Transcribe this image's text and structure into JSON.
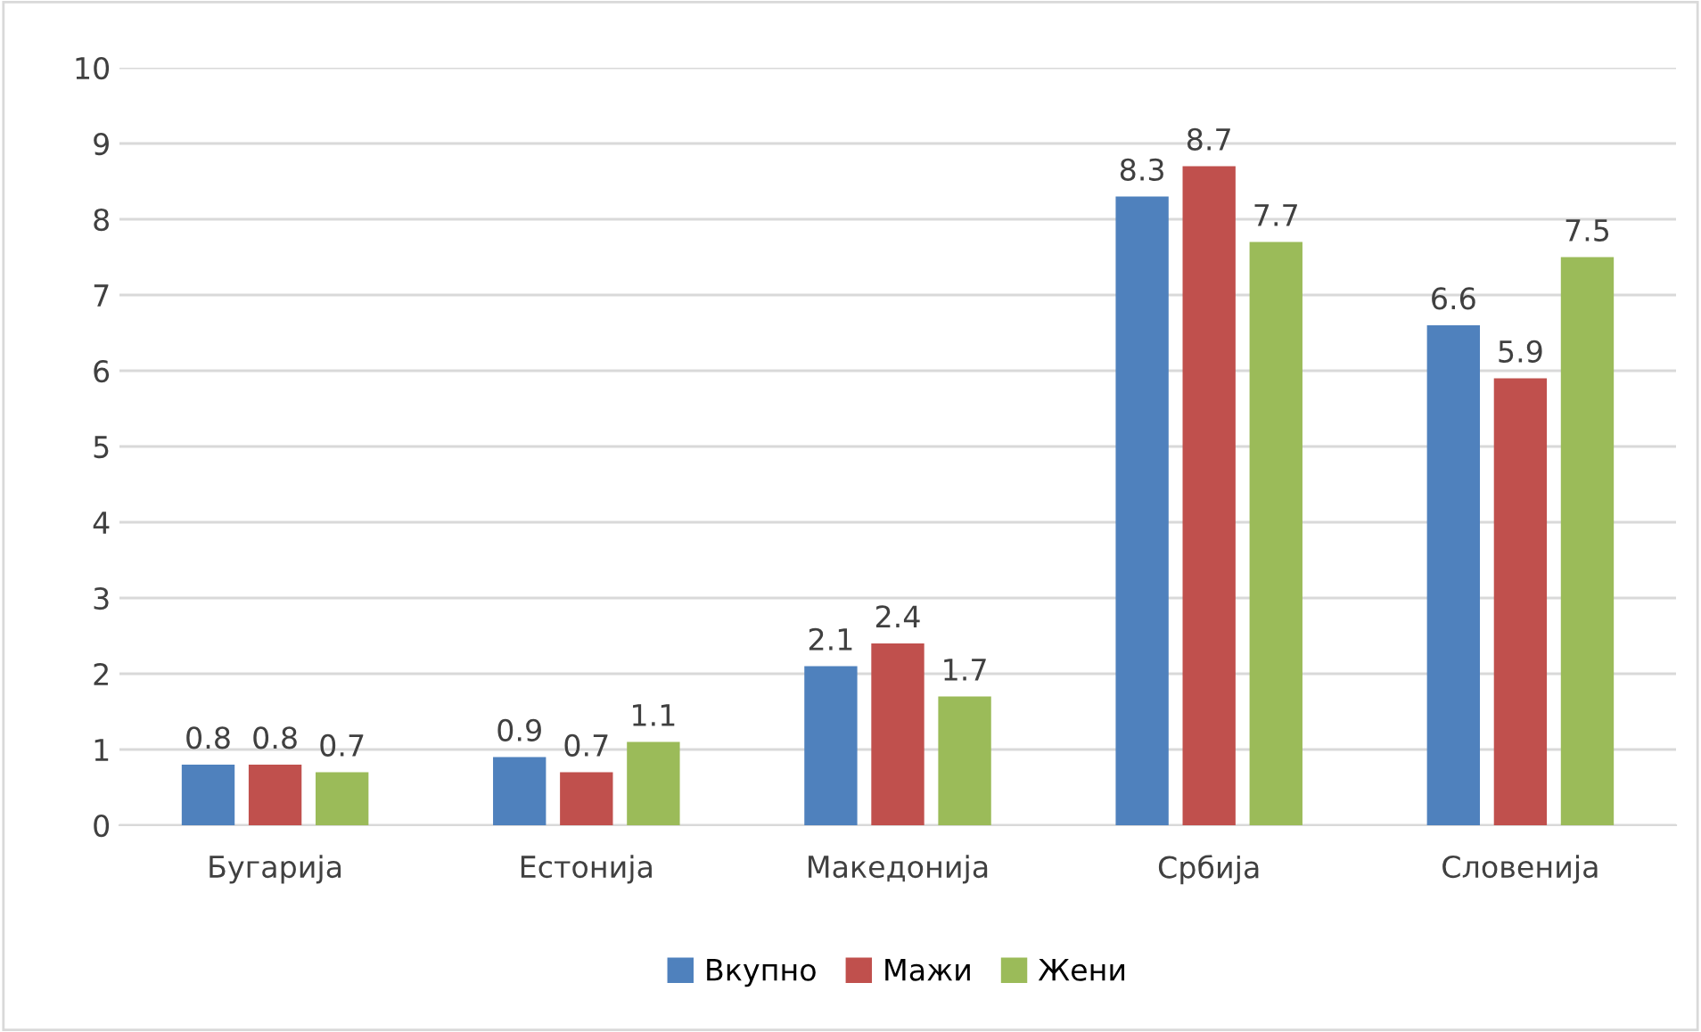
{
  "chart_data": {
    "type": "bar",
    "categories": [
      "Бугарија",
      "Естонија",
      "Македонија",
      "Србија",
      "Словенија"
    ],
    "series": [
      {
        "name": "Вкупно",
        "color": "#4f81bd",
        "values": [
          0.8,
          0.9,
          2.1,
          8.3,
          6.6
        ]
      },
      {
        "name": "Мажи",
        "color": "#c0504d",
        "values": [
          0.8,
          0.7,
          2.4,
          8.7,
          5.9
        ]
      },
      {
        "name": "Жени",
        "color": "#9bbb59",
        "values": [
          0.7,
          1.1,
          1.7,
          7.7,
          7.5
        ]
      }
    ],
    "ylim": [
      0,
      10
    ],
    "yticks": [
      0,
      1,
      2,
      3,
      4,
      5,
      6,
      7,
      8,
      9,
      10
    ],
    "grid": "y",
    "legend": "bottom",
    "data_labels": true
  }
}
